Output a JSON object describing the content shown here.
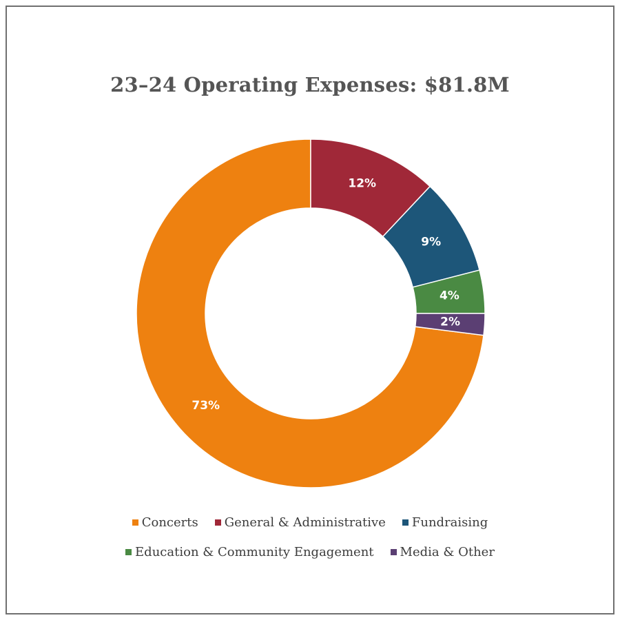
{
  "chart_data": {
    "type": "pie",
    "title": "23–24 Operating Expenses: $81.8M",
    "categories": [
      "Concerts",
      "General & Administrative",
      "Fundraising",
      "Education & Community Engagement",
      "Media & Other"
    ],
    "values": [
      73,
      12,
      9,
      4,
      2
    ],
    "labels": [
      "73%",
      "12%",
      "9%",
      "4%",
      "2%"
    ],
    "colors": [
      "#EE8110",
      "#A02838",
      "#1D5679",
      "#4A8A43",
      "#5B3F73"
    ],
    "style": "donut",
    "legend": "bottom"
  }
}
